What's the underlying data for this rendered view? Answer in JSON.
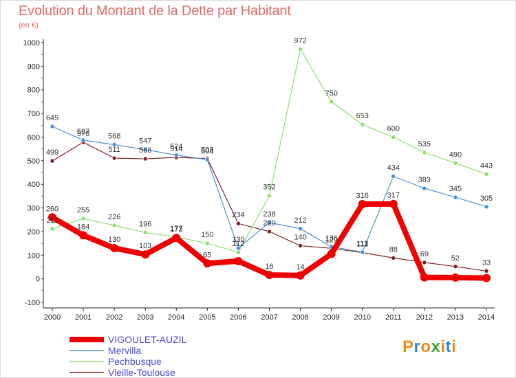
{
  "title": "Evolution du Montant de la Dette par Habitant",
  "unit": "(en €)",
  "logo": {
    "text": "Proxiti",
    "colors": [
      "#f08a1c",
      "#2a8ad8",
      "#f08a1c",
      "#3aa83a",
      "#f08a1c",
      "#2a8ad8",
      "#f08a1c"
    ]
  },
  "chart_data": {
    "type": "line",
    "x": [
      2000,
      2001,
      2002,
      2003,
      2004,
      2005,
      2006,
      2007,
      2008,
      2009,
      2010,
      2011,
      2012,
      2013,
      2014
    ],
    "ylim": [
      -100,
      1000
    ],
    "yticks": [
      -100,
      0,
      100,
      200,
      300,
      400,
      500,
      600,
      700,
      800,
      900,
      1000
    ],
    "grid": false,
    "legend_position": "bottom-left",
    "series": [
      {
        "name": "Mervilla",
        "color": "#4a8fd4",
        "values": [
          645,
          587,
          568,
          547,
          524,
          504,
          130,
          238,
          212,
          136,
          113,
          434,
          383,
          345,
          305
        ]
      },
      {
        "name": "Pechbusque",
        "color": "#90dc70",
        "values": [
          211,
          255,
          226,
          196,
          177,
          150,
          112,
          352,
          972,
          750,
          653,
          600,
          535,
          490,
          443
        ]
      },
      {
        "name": "Vieille-Toulouse",
        "color": "#7a2424",
        "values": [
          499,
          578,
          511,
          508,
          514,
          509,
          234,
          200,
          140,
          129,
          111,
          88,
          69,
          52,
          33
        ]
      },
      {
        "name": "VIGOULET-AUZIL",
        "color": "#ee0000",
        "values": [
          260,
          184,
          130,
          103,
          173,
          65,
          75,
          16,
          14,
          105,
          316,
          317,
          6,
          5,
          3
        ]
      }
    ],
    "labels": [
      {
        "series": "Mervilla",
        "values": [
          "645",
          "587",
          "568",
          "547",
          "524",
          "504",
          "130",
          "238",
          "212",
          "136",
          "113",
          "434",
          "383",
          "345",
          "305"
        ]
      },
      {
        "series": "Pechbusque",
        "values": [
          "211",
          "255",
          "226",
          "196",
          "177",
          "150",
          "112",
          "352",
          "972",
          "750",
          "653",
          "600",
          "535",
          "490",
          "443"
        ]
      },
      {
        "series": "Vieille-Toulouse",
        "values": [
          "499",
          "578",
          "511",
          "508",
          "514",
          "509",
          "234",
          "200",
          "140",
          "129",
          "111",
          "88",
          "69",
          "52",
          "33"
        ]
      },
      {
        "series": "VIGOULET-AUZIL",
        "values": [
          "260",
          "184",
          "130",
          "103",
          "173",
          "65",
          "",
          "16",
          "14",
          "",
          "316",
          "317",
          "",
          "",
          ""
        ]
      }
    ],
    "legend_order": [
      "VIGOULET-AUZIL",
      "Mervilla",
      "Pechbusque",
      "Vieille-Toulouse"
    ]
  }
}
